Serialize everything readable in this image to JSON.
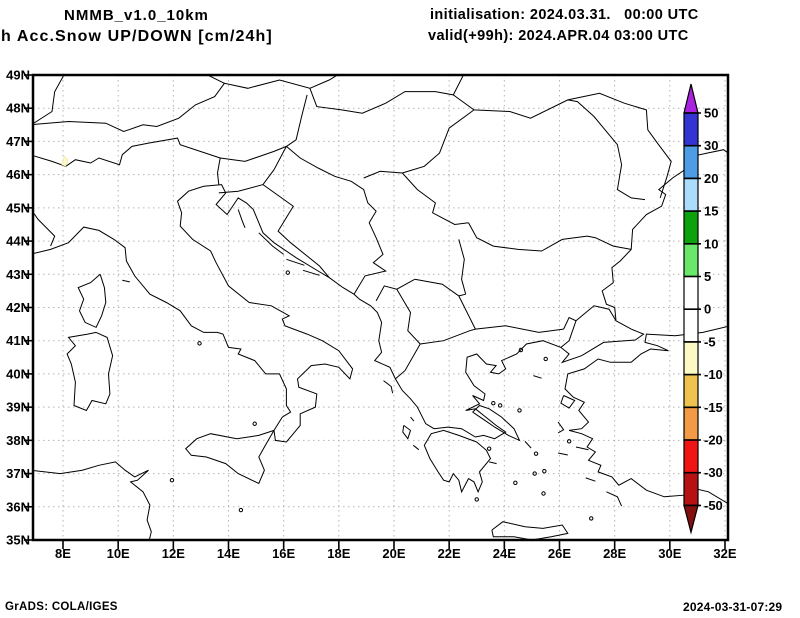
{
  "header": {
    "model_title": "NMMB_v1.0_10km",
    "parameter_title": "h Acc.Snow UP/DOWN [cm/24h]",
    "init_line": "initialisation: 2024.03.31.   00:00 UTC",
    "valid_line": "valid(+99h): 2024.APR.04 03:00 UTC"
  },
  "map": {
    "lat_ticks": [
      {
        "value": 49,
        "label": "49N"
      },
      {
        "value": 48,
        "label": "48N"
      },
      {
        "value": 47,
        "label": "47N"
      },
      {
        "value": 46,
        "label": "46N"
      },
      {
        "value": 45,
        "label": "45N"
      },
      {
        "value": 44,
        "label": "44N"
      },
      {
        "value": 43,
        "label": "43N"
      },
      {
        "value": 42,
        "label": "42N"
      },
      {
        "value": 41,
        "label": "41N"
      },
      {
        "value": 40,
        "label": "40N"
      },
      {
        "value": 39,
        "label": "39N"
      },
      {
        "value": 38,
        "label": "38N"
      },
      {
        "value": 37,
        "label": "37N"
      },
      {
        "value": 36,
        "label": "36N"
      },
      {
        "value": 35,
        "label": "35N"
      }
    ],
    "lon_ticks": [
      {
        "value": 8,
        "label": "8E"
      },
      {
        "value": 10,
        "label": "10E"
      },
      {
        "value": 12,
        "label": "12E"
      },
      {
        "value": 14,
        "label": "14E"
      },
      {
        "value": 16,
        "label": "16E"
      },
      {
        "value": 18,
        "label": "18E"
      },
      {
        "value": 20,
        "label": "20E"
      },
      {
        "value": 22,
        "label": "22E"
      },
      {
        "value": 24,
        "label": "24E"
      },
      {
        "value": 26,
        "label": "26E"
      },
      {
        "value": 28,
        "label": "28E"
      },
      {
        "value": 30,
        "label": "30E"
      },
      {
        "value": 32,
        "label": "32E"
      }
    ]
  },
  "colorbar": {
    "boundary_labels": [
      "50",
      "30",
      "20",
      "15",
      "10",
      "5",
      "0",
      "-5",
      "-10",
      "-15",
      "-20",
      "-30",
      "-50"
    ],
    "segment_colors": [
      "#3434d3",
      "#4e9ce6",
      "#abdcfc",
      "#0da10d",
      "#6ae66a",
      "#ffffff",
      "#ffffff",
      "#fdf9c4",
      "#f0c24f",
      "#f29a45",
      "#f01414",
      "#b61213"
    ],
    "arrow_top_color": "#a822e0",
    "arrow_bottom_color": "#840f0f"
  },
  "footer": {
    "credit": "GrADS: COLA/IGES",
    "timestamp": "2024-03-31-07:29"
  },
  "colors": {
    "coast": "#000000",
    "grid": "#b3b3b3",
    "frame": "#000000",
    "snow_spot": "#fdf9c4"
  }
}
